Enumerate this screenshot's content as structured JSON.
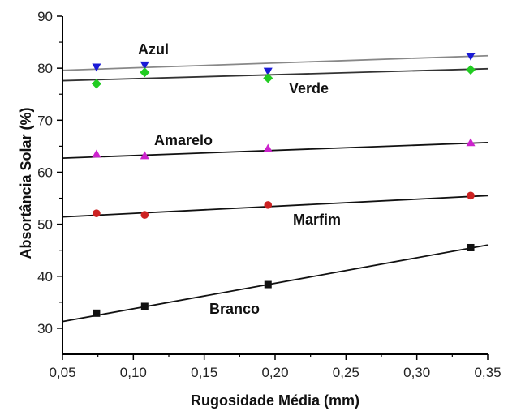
{
  "chart_data": {
    "type": "scatter",
    "title": "",
    "xlabel": "Rugosidade Média (mm)",
    "ylabel": "Absortância Solar (%)",
    "xlim": [
      0.05,
      0.35
    ],
    "ylim": [
      25,
      90
    ],
    "xticks": [
      "0,05",
      "0,10",
      "0,15",
      "0,20",
      "0,25",
      "0,30",
      "0,35"
    ],
    "yticks": [
      "30",
      "40",
      "50",
      "60",
      "70",
      "80",
      "90"
    ],
    "grid": false,
    "legend": "none",
    "x": [
      0.074,
      0.108,
      0.195,
      0.338
    ],
    "series": [
      {
        "name": "Azul",
        "values": [
          80.2,
          80.6,
          79.4,
          82.3
        ],
        "marker": "triangle-down",
        "color": "#1a1ad6",
        "fit": {
          "x": [
            0.05,
            0.35
          ],
          "y": [
            79.6,
            82.4
          ],
          "color": "#888888"
        }
      },
      {
        "name": "Verde",
        "values": [
          77.0,
          79.2,
          78.1,
          79.7
        ],
        "marker": "diamond",
        "color": "#22cc22",
        "fit": {
          "x": [
            0.05,
            0.35
          ],
          "y": [
            77.6,
            79.9
          ],
          "color": "#333333"
        }
      },
      {
        "name": "Amarelo",
        "values": [
          63.5,
          63.2,
          64.6,
          65.7
        ],
        "marker": "triangle-up",
        "color": "#cc22cc",
        "fit": {
          "x": [
            0.05,
            0.35
          ],
          "y": [
            62.7,
            65.7
          ],
          "color": "#111111"
        }
      },
      {
        "name": "Marfim",
        "values": [
          52.1,
          51.8,
          53.7,
          55.5
        ],
        "marker": "circle",
        "color": "#cc2222",
        "fit": {
          "x": [
            0.05,
            0.35
          ],
          "y": [
            51.4,
            55.5
          ],
          "color": "#111111"
        }
      },
      {
        "name": "Branco",
        "values": [
          32.9,
          34.2,
          38.4,
          45.5
        ],
        "marker": "square",
        "color": "#111111",
        "fit": {
          "x": [
            0.05,
            0.35
          ],
          "y": [
            31.3,
            46.0
          ],
          "color": "#111111"
        }
      }
    ]
  }
}
